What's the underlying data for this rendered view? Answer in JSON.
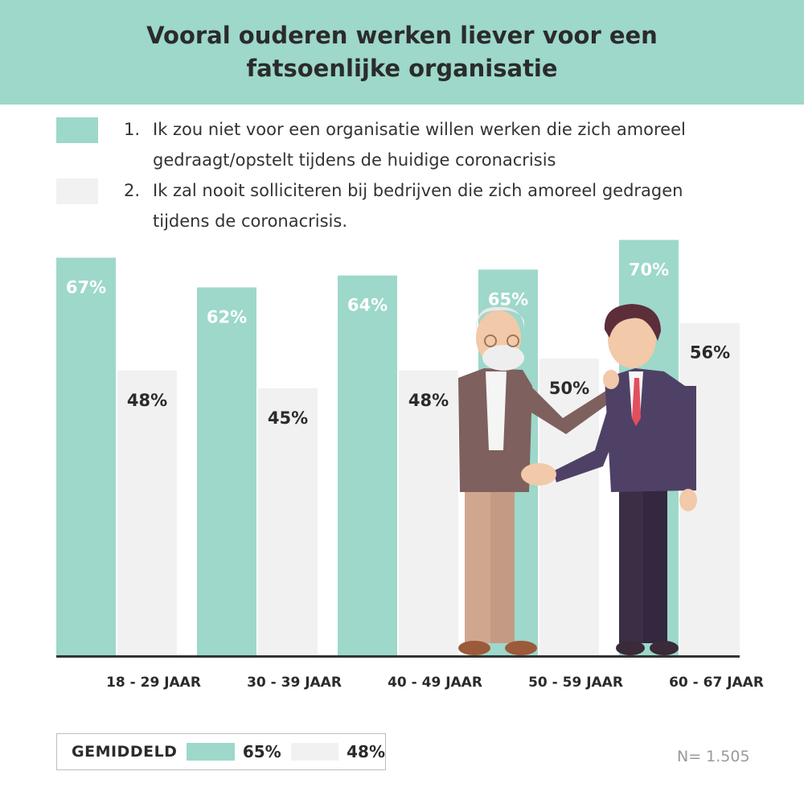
{
  "header": {
    "title": "Vooral ouderen werken liever voor een fatsoenlijke organisatie"
  },
  "legend": [
    {
      "number": "1.",
      "line1": "Ik zou niet voor een organisatie willen werken die zich amoreel",
      "line2": "gedraagt/opstelt tijdens de huidige coronacrisis",
      "color": "#9dd8ca"
    },
    {
      "number": "2.",
      "line1": "Ik zal nooit solliciteren bij bedrijven die zich amoreel gedragen",
      "line2": "tijdens de coronacrisis.",
      "color": "#f1f1f1"
    }
  ],
  "chart_data": {
    "type": "bar",
    "categories": [
      "18 - 29 JAAR",
      "30 - 39 JAAR",
      "40 - 49 JAAR",
      "50 - 59 JAAR",
      "60 - 67 JAAR"
    ],
    "series": [
      {
        "values": [
          67,
          62,
          64,
          65,
          70
        ],
        "labels": [
          "67%",
          "62%",
          "64%",
          "65%",
          "70%"
        ],
        "color": "#9dd8ca"
      },
      {
        "values": [
          48,
          45,
          48,
          50,
          56
        ],
        "labels": [
          "48%",
          "45%",
          "48%",
          "50%",
          "56%"
        ],
        "color": "#f1f1f1"
      }
    ],
    "ylim": [
      0,
      100
    ],
    "grid": false
  },
  "footer": {
    "average_label": "GEMIDDELD",
    "average_values": [
      "65%",
      "48%"
    ],
    "sample_size": "N= 1.505"
  },
  "illustration": {
    "subject": "handshake-illustration"
  }
}
